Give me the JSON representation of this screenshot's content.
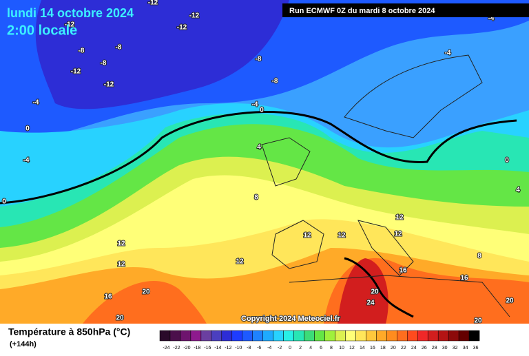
{
  "header": {
    "title": "lundi 14 octobre 2024",
    "subtitle": "2:00 locale",
    "run": "Run ECMWF 0Z du mardi 8 octobre 2024"
  },
  "copyright": "Copyright 2024 Meteociel.fr",
  "legend": {
    "title": "Température à 850hPa (°C)",
    "lead_time": "(+144h)",
    "labels": [
      -24,
      -22,
      -20,
      -18,
      -16,
      -14,
      -12,
      -10,
      -8,
      -6,
      -4,
      -2,
      0,
      2,
      4,
      6,
      8,
      10,
      12,
      14,
      16,
      18,
      20,
      22,
      24,
      26,
      28,
      30,
      32,
      34,
      36
    ],
    "colors": [
      "#2a0a2a",
      "#4b0f4b",
      "#6e146e",
      "#8e1a8e",
      "#6b3fa0",
      "#4b3fbf",
      "#2d2dd6",
      "#1e3cff",
      "#1e5aff",
      "#1e82ff",
      "#1eaaff",
      "#28d2ff",
      "#28f0e6",
      "#28e6b4",
      "#3cdc78",
      "#64e646",
      "#a0f03c",
      "#dcf050",
      "#ffff78",
      "#ffe65a",
      "#ffc83c",
      "#ffaa28",
      "#ff8c1e",
      "#ff6e1e",
      "#ff4b1e",
      "#f02828",
      "#d21e1e",
      "#b41414",
      "#8c0a0a",
      "#640000",
      "#000000"
    ]
  },
  "contour_labels": [
    -12,
    -12,
    -12,
    -12,
    -8,
    -8,
    -8,
    -12,
    -12,
    -8,
    -8,
    -4,
    -4,
    0,
    0,
    -4,
    0,
    4,
    8,
    -4,
    -4,
    0,
    4,
    12,
    12,
    12,
    12,
    12,
    12,
    12,
    16,
    20,
    20,
    16,
    16,
    8,
    20,
    24,
    20,
    20
  ]
}
